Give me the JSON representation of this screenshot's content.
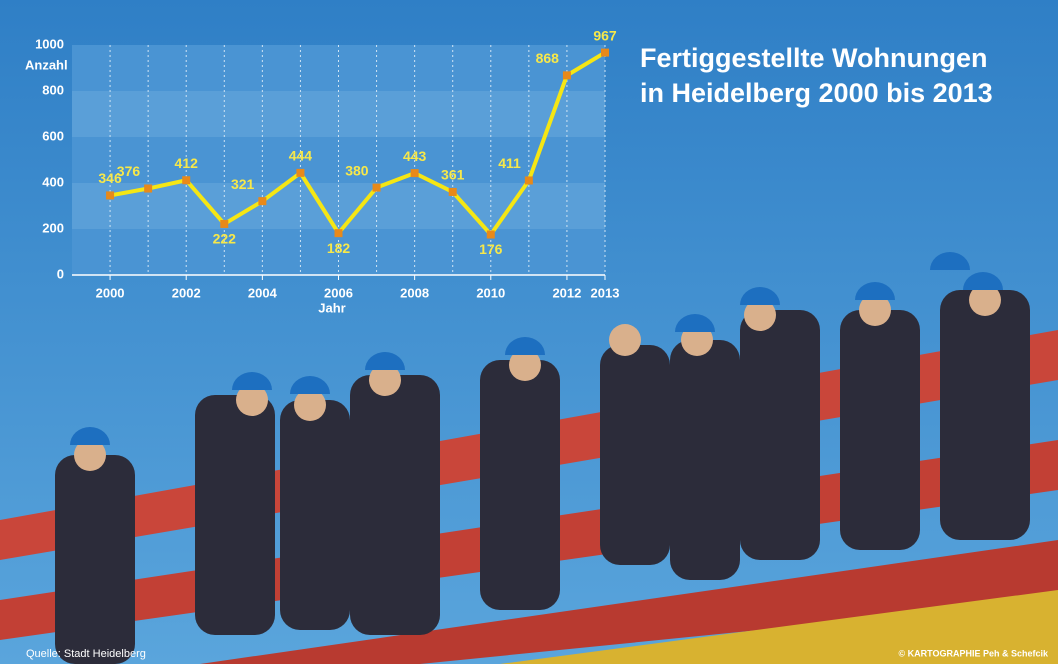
{
  "chart_data": {
    "type": "line",
    "title": [
      "Fertiggestellte Wohnungen",
      "in Heidelberg 2000 bis 2013"
    ],
    "y_label": "Anzahl",
    "x_label": "Jahr",
    "x": [
      2000,
      2001,
      2002,
      2003,
      2004,
      2005,
      2006,
      2007,
      2008,
      2009,
      2010,
      2011,
      2012,
      2013
    ],
    "values": [
      346,
      376,
      412,
      222,
      321,
      444,
      182,
      380,
      443,
      361,
      176,
      411,
      868,
      967
    ],
    "color": "#f5e614",
    "marker_color": "#e8891a",
    "xlim": [
      1999,
      2013
    ],
    "xticks": [
      2000,
      2002,
      2004,
      2006,
      2008,
      2010,
      2012,
      2013
    ],
    "ylim": [
      0,
      1000
    ],
    "yticks": [
      0,
      200,
      400,
      600,
      800,
      1000
    ],
    "grid": true,
    "source": "Quelle: Stadt Heidelberg",
    "credit": "© KARTOGRAPHIE Peh & Schefcik"
  }
}
